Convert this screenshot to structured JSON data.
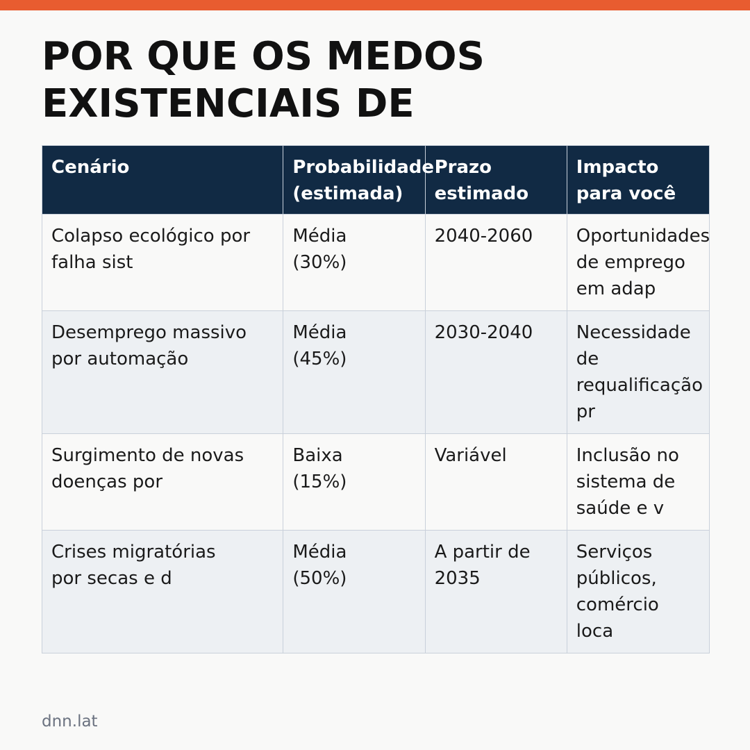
{
  "title": "POR QUE OS MEDOS\nEXISTENCIAIS DE",
  "table": {
    "headers": [
      [
        "Cenário"
      ],
      [
        "Probabilidade",
        "(estimada)"
      ],
      [
        "Prazo",
        "estimado"
      ],
      [
        "Impacto",
        "para você"
      ]
    ],
    "rows": [
      [
        [
          "Colapso ecológico por",
          "falha sist"
        ],
        [
          "Média",
          "(30%)"
        ],
        [
          "2040-2060"
        ],
        [
          "Oportunidades",
          "de emprego",
          "em adap"
        ]
      ],
      [
        [
          "Desemprego massivo",
          "por automação"
        ],
        [
          "Média",
          "(45%)"
        ],
        [
          "2030-2040"
        ],
        [
          "Necessidade",
          "de",
          "requalificação",
          "pr"
        ]
      ],
      [
        [
          "Surgimento de novas",
          "doenças por"
        ],
        [
          "Baixa",
          "(15%)"
        ],
        [
          "Variável"
        ],
        [
          "Inclusão no",
          "sistema de",
          "saúde e v"
        ]
      ],
      [
        [
          "Crises migratórias",
          "por secas e d"
        ],
        [
          "Média",
          "(50%)"
        ],
        [
          "A partir de",
          "2035"
        ],
        [
          "Serviços",
          "públicos,",
          "comércio",
          "loca"
        ]
      ]
    ]
  },
  "footer": {
    "domain": "dnn.lat"
  },
  "colors": {
    "accent": "#e85c30",
    "header_bg": "#112a44",
    "row_alt_bg": "#edf0f3",
    "page_bg": "#f9f9f8"
  }
}
